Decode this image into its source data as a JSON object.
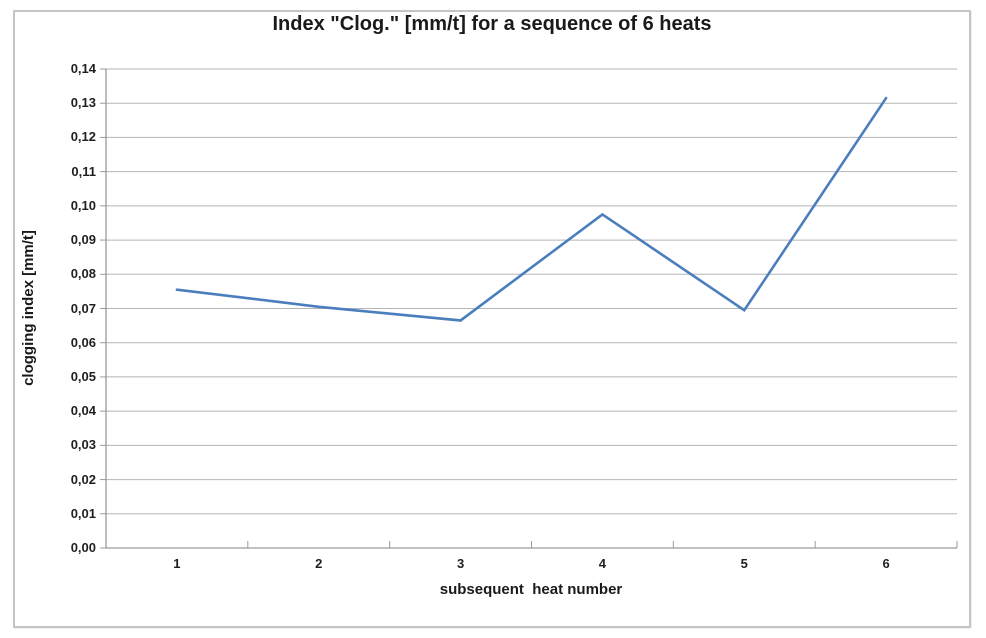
{
  "chart_data": {
    "type": "line",
    "title": "Index \"Clog.\" [mm/t] for a sequence of 6 heats",
    "xlabel": "subsequent  heat number",
    "ylabel": "clogging index [mm/t]",
    "categories": [
      "1",
      "2",
      "3",
      "4",
      "5",
      "6"
    ],
    "values": [
      0.0755,
      0.0705,
      0.0665,
      0.0975,
      0.0695,
      0.1315
    ],
    "ylim": [
      0,
      0.14
    ],
    "ytick_step": 0.01,
    "ytick_labels": [
      "0,00",
      "0,01",
      "0,02",
      "0,03",
      "0,04",
      "0,05",
      "0,06",
      "0,07",
      "0,08",
      "0,09",
      "0,10",
      "0,11",
      "0,12",
      "0,13",
      "0,14"
    ],
    "grid": "horizontal",
    "legend_position": "none",
    "colors": {
      "line": "#4a7ebd",
      "grid": "#b5b5b5",
      "axis": "#9a9a9a",
      "text": "#1f1f1f",
      "frame_border": "#c4c4c4"
    }
  }
}
